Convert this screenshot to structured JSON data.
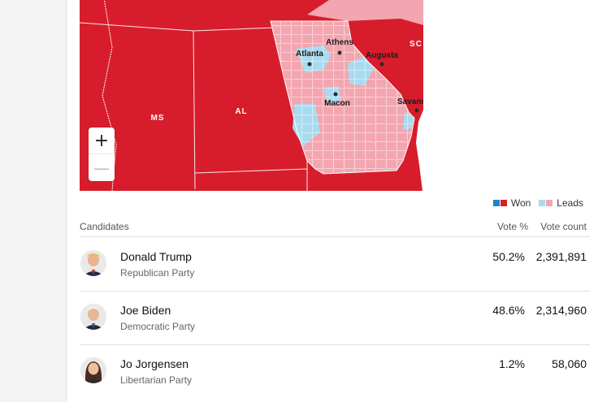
{
  "colors": {
    "rep_won": "#d71d2b",
    "rep_leads": "#f3a6b0",
    "dem_won": "#1a85c7",
    "dem_leads": "#a9dbef",
    "ocean": "#ffffff"
  },
  "map": {
    "state_labels": [
      "MS",
      "AL",
      "SC"
    ],
    "city_labels": [
      "Athens",
      "Atlanta",
      "Augusta",
      "Macon",
      "Savannah"
    ],
    "zoom_in": "+",
    "zoom_out": "—"
  },
  "legend": {
    "won": "Won",
    "leads": "Leads"
  },
  "table": {
    "headers": {
      "candidates": "Candidates",
      "vote_pct": "Vote %",
      "vote_count": "Vote count"
    },
    "rows": [
      {
        "name": "Donald Trump",
        "party": "Republican Party",
        "pct": "50.2%",
        "count": "2,391,891"
      },
      {
        "name": "Joe Biden",
        "party": "Democratic Party",
        "pct": "48.6%",
        "count": "2,314,960"
      },
      {
        "name": "Jo Jorgensen",
        "party": "Libertarian Party",
        "pct": "1.2%",
        "count": "58,060"
      }
    ]
  }
}
